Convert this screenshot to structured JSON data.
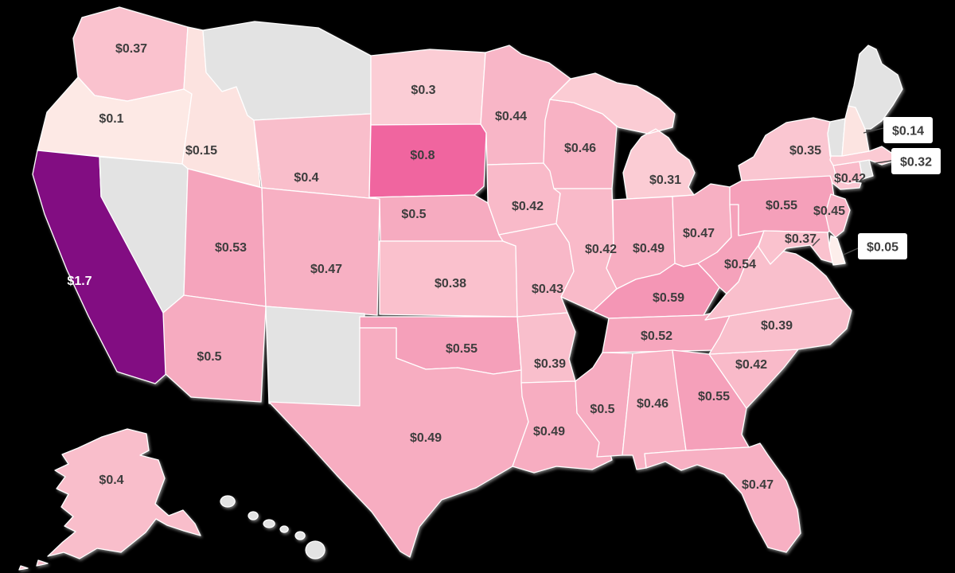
{
  "chart_data": {
    "type": "choropleth",
    "title": "",
    "region": "United States (values by state)",
    "value_prefix": "$",
    "background_color": "#000000",
    "state_border_color": "#ffffff",
    "no_data_color": "#e3e3e3",
    "label_color": "#3d3d3d",
    "label_color_on_dark": "#ffffff",
    "callout_box_color": "#ffffff",
    "legend": "none",
    "colorscale": [
      {
        "value": 0.05,
        "color": "#fdeeeb"
      },
      {
        "value": 0.8,
        "color": "#f0659f"
      },
      {
        "value": 1.7,
        "color": "#820d82"
      }
    ],
    "states": [
      {
        "id": "WA",
        "name": "Washington",
        "label": "$0.37",
        "value": 0.37,
        "color": "#fac2ce"
      },
      {
        "id": "OR",
        "name": "Oregon",
        "label": "$0.1",
        "value": 0.1,
        "color": "#fde9e5"
      },
      {
        "id": "CA",
        "name": "California",
        "label": "$1.7",
        "value": 1.7,
        "color": "#820d82",
        "label_on_dark": true
      },
      {
        "id": "ID",
        "name": "Idaho",
        "label": "$0.15",
        "value": 0.15,
        "color": "#fce3e0"
      },
      {
        "id": "NV",
        "name": "Nevada",
        "label": "",
        "value": null,
        "color": "#e3e3e3"
      },
      {
        "id": "MT",
        "name": "Montana",
        "label": "",
        "value": null,
        "color": "#e3e3e3"
      },
      {
        "id": "WY",
        "name": "Wyoming",
        "label": "$0.4",
        "value": 0.4,
        "color": "#f9becb"
      },
      {
        "id": "UT",
        "name": "Utah",
        "label": "$0.53",
        "value": 0.53,
        "color": "#f5a4bc"
      },
      {
        "id": "CO",
        "name": "Colorado",
        "label": "$0.47",
        "value": 0.47,
        "color": "#f7b0c3"
      },
      {
        "id": "AZ",
        "name": "Arizona",
        "label": "$0.5",
        "value": 0.5,
        "color": "#f6abc0"
      },
      {
        "id": "NM",
        "name": "New Mexico",
        "label": "",
        "value": null,
        "color": "#e3e3e3"
      },
      {
        "id": "ND",
        "name": "North Dakota",
        "label": "$0.3",
        "value": 0.3,
        "color": "#fbcdd5"
      },
      {
        "id": "SD",
        "name": "South Dakota",
        "label": "$0.8",
        "value": 0.8,
        "color": "#f0659f"
      },
      {
        "id": "NE",
        "name": "Nebraska",
        "label": "$0.5",
        "value": 0.5,
        "color": "#f6abc0"
      },
      {
        "id": "KS",
        "name": "Kansas",
        "label": "$0.38",
        "value": 0.38,
        "color": "#fac1cd"
      },
      {
        "id": "OK",
        "name": "Oklahoma",
        "label": "$0.55",
        "value": 0.55,
        "color": "#f5a0ba"
      },
      {
        "id": "TX",
        "name": "Texas",
        "label": "$0.49",
        "value": 0.49,
        "color": "#f7adc1"
      },
      {
        "id": "MN",
        "name": "Minnesota",
        "label": "$0.44",
        "value": 0.44,
        "color": "#f8b6c7"
      },
      {
        "id": "IA",
        "name": "Iowa",
        "label": "$0.42",
        "value": 0.42,
        "color": "#f9bac9"
      },
      {
        "id": "MO",
        "name": "Missouri",
        "label": "$0.43",
        "value": 0.43,
        "color": "#f8b8c8"
      },
      {
        "id": "AR",
        "name": "Arkansas",
        "label": "$0.39",
        "value": 0.39,
        "color": "#f9bfcc"
      },
      {
        "id": "LA",
        "name": "Louisiana",
        "label": "$0.49",
        "value": 0.49,
        "color": "#f7adc1"
      },
      {
        "id": "WI",
        "name": "Wisconsin",
        "label": "$0.46",
        "value": 0.46,
        "color": "#f8b2c4"
      },
      {
        "id": "IL",
        "name": "Illinois",
        "label": "$0.42",
        "value": 0.42,
        "color": "#f9bac9"
      },
      {
        "id": "MI",
        "name": "Michigan",
        "label": "$0.31",
        "value": 0.31,
        "color": "#fbccd4"
      },
      {
        "id": "IN",
        "name": "Indiana",
        "label": "$0.49",
        "value": 0.49,
        "color": "#f7adc1"
      },
      {
        "id": "OH",
        "name": "Ohio",
        "label": "$0.47",
        "value": 0.47,
        "color": "#f7b0c3"
      },
      {
        "id": "KY",
        "name": "Kentucky",
        "label": "$0.59",
        "value": 0.59,
        "color": "#f496b5"
      },
      {
        "id": "TN",
        "name": "Tennessee",
        "label": "$0.52",
        "value": 0.52,
        "color": "#f6a6bd"
      },
      {
        "id": "MS",
        "name": "Mississippi",
        "label": "$0.5",
        "value": 0.5,
        "color": "#f6abc0"
      },
      {
        "id": "AL",
        "name": "Alabama",
        "label": "$0.46",
        "value": 0.46,
        "color": "#f8b2c4"
      },
      {
        "id": "GA",
        "name": "Georgia",
        "label": "$0.55",
        "value": 0.55,
        "color": "#f5a0ba"
      },
      {
        "id": "FL",
        "name": "Florida",
        "label": "$0.47",
        "value": 0.47,
        "color": "#f7b0c3"
      },
      {
        "id": "SC",
        "name": "South Carolina",
        "label": "$0.42",
        "value": 0.42,
        "color": "#f9bac9"
      },
      {
        "id": "NC",
        "name": "North Carolina",
        "label": "$0.39",
        "value": 0.39,
        "color": "#f9bfcc"
      },
      {
        "id": "VA",
        "name": "Virginia",
        "label": "",
        "value": null,
        "color": "#f9bfcc"
      },
      {
        "id": "WV",
        "name": "West Virginia",
        "label": "$0.54",
        "value": 0.54,
        "color": "#f5a2bb"
      },
      {
        "id": "PA",
        "name": "Pennsylvania",
        "label": "$0.55",
        "value": 0.55,
        "color": "#f5a0ba"
      },
      {
        "id": "NY",
        "name": "New York",
        "label": "$0.35",
        "value": 0.35,
        "color": "#fac6d1"
      },
      {
        "id": "NJ",
        "name": "New Jersey",
        "label": "$0.45",
        "value": 0.45,
        "color": "#f8b4c6"
      },
      {
        "id": "DE",
        "name": "Delaware",
        "label": "$0.05",
        "value": 0.05,
        "color": "#fdeeeb",
        "callout": true
      },
      {
        "id": "MD",
        "name": "Maryland",
        "label": "$0.37",
        "value": 0.37,
        "color": "#fac2ce"
      },
      {
        "id": "CT",
        "name": "Connecticut",
        "label": "$0.42",
        "value": 0.42,
        "color": "#f9bac9"
      },
      {
        "id": "RI",
        "name": "Rhode Island",
        "label": "",
        "value": null,
        "color": "#e3e3e3"
      },
      {
        "id": "MA",
        "name": "Massachusetts",
        "label": "$0.32",
        "value": 0.32,
        "color": "#fbcad3",
        "callout": true
      },
      {
        "id": "VT",
        "name": "Vermont",
        "label": "",
        "value": null,
        "color": "#e3e3e3"
      },
      {
        "id": "NH",
        "name": "New Hampshire",
        "label": "$0.14",
        "value": 0.14,
        "color": "#fce4e1",
        "callout": true
      },
      {
        "id": "ME",
        "name": "Maine",
        "label": "",
        "value": null,
        "color": "#e3e3e3"
      },
      {
        "id": "AK",
        "name": "Alaska",
        "label": "$0.4",
        "value": 0.4,
        "color": "#f9becb"
      },
      {
        "id": "HI",
        "name": "Hawaii",
        "label": "",
        "value": null,
        "color": "#e3e3e3"
      }
    ]
  }
}
